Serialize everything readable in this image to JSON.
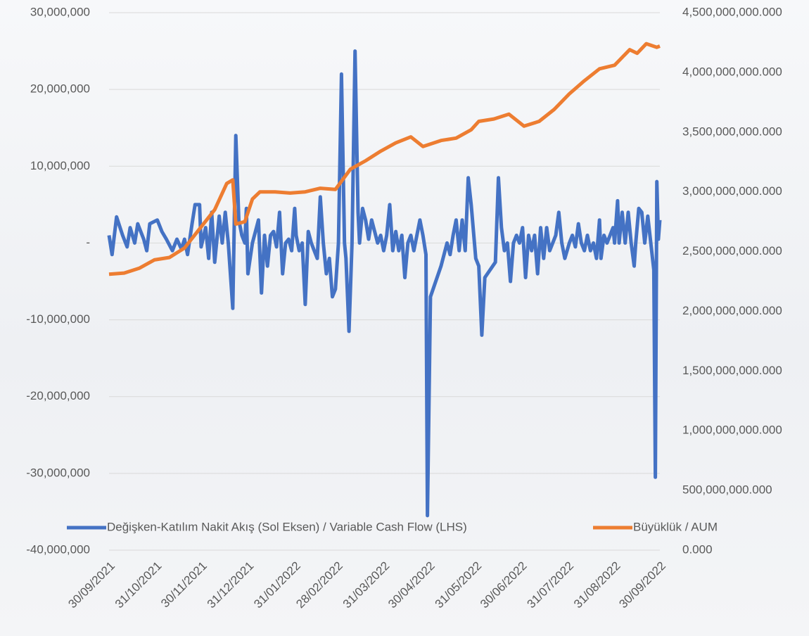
{
  "chart_data": {
    "type": "line",
    "xlim": [
      "2021-09-30",
      "2022-09-30"
    ],
    "xticks": [
      {
        "value": "2021-09-30",
        "label": "30/09/2021"
      },
      {
        "value": "2021-10-31",
        "label": "31/10/2021"
      },
      {
        "value": "2021-11-30",
        "label": "30/11/2021"
      },
      {
        "value": "2021-12-31",
        "label": "31/12/2021"
      },
      {
        "value": "2022-01-31",
        "label": "31/01/2022"
      },
      {
        "value": "2022-02-28",
        "label": "28/02/2022"
      },
      {
        "value": "2022-03-31",
        "label": "31/03/2022"
      },
      {
        "value": "2022-04-30",
        "label": "30/04/2022"
      },
      {
        "value": "2022-05-31",
        "label": "31/05/2022"
      },
      {
        "value": "2022-06-30",
        "label": "30/06/2022"
      },
      {
        "value": "2022-07-31",
        "label": "31/07/2022"
      },
      {
        "value": "2022-08-31",
        "label": "31/08/2022"
      },
      {
        "value": "2022-09-30",
        "label": "30/09/2022"
      }
    ],
    "ylim": [
      -40000000,
      30000000
    ],
    "yticks": [
      {
        "value": -40000000,
        "label": "-40,000,000"
      },
      {
        "value": -30000000,
        "label": "-30,000,000"
      },
      {
        "value": -20000000,
        "label": "-20,000,000"
      },
      {
        "value": -10000000,
        "label": "-10,000,000"
      },
      {
        "value": 0,
        "label": "-"
      },
      {
        "value": 10000000,
        "label": "10,000,000"
      },
      {
        "value": 20000000,
        "label": "20,000,000"
      },
      {
        "value": 30000000,
        "label": "30,000,000"
      }
    ],
    "y2lim": [
      0,
      4500000000000
    ],
    "y2ticks": [
      {
        "value": 0,
        "label": "0.000"
      },
      {
        "value": 500000000000,
        "label": "500,000,000.000"
      },
      {
        "value": 1000000000000,
        "label": "1,000,000,000.000"
      },
      {
        "value": 1500000000000,
        "label": "1,500,000,000.000"
      },
      {
        "value": 2000000000000,
        "label": "2,000,000,000.000"
      },
      {
        "value": 2500000000000,
        "label": "2,500,000,000.000"
      },
      {
        "value": 3000000000000,
        "label": "3,000,000,000.000"
      },
      {
        "value": 3500000000000,
        "label": "3,500,000,000.000"
      },
      {
        "value": 4000000000000,
        "label": "4,000,000,000.000"
      },
      {
        "value": 4500000000000,
        "label": "4,500,000,000.000"
      }
    ],
    "grid": true,
    "legend": "bottom",
    "series": [
      {
        "name": "Değişken-Katılım Nakit Akış (Sol Eksen) / Variable Cash Flow (LHS)",
        "color": "#4472c4",
        "x": [
          "2021-09-30",
          "2021-10-02",
          "2021-10-05",
          "2021-10-09",
          "2021-10-12",
          "2021-10-14",
          "2021-10-17",
          "2021-10-19",
          "2021-10-23",
          "2021-10-25",
          "2021-10-27",
          "2021-11-01",
          "2021-11-04",
          "2021-11-07",
          "2021-11-11",
          "2021-11-14",
          "2021-11-17",
          "2021-11-19",
          "2021-11-21",
          "2021-11-24",
          "2021-11-26",
          "2021-11-29",
          "2021-11-30",
          "2021-12-03",
          "2021-12-05",
          "2021-12-07",
          "2021-12-09",
          "2021-12-12",
          "2021-12-14",
          "2021-12-16",
          "2021-12-18",
          "2021-12-21",
          "2021-12-23",
          "2021-12-25",
          "2021-12-27",
          "2021-12-29",
          "2021-12-30",
          "2021-12-31",
          "2022-01-03",
          "2022-01-05",
          "2022-01-07",
          "2022-01-09",
          "2022-01-11",
          "2022-01-13",
          "2022-01-15",
          "2022-01-17",
          "2022-01-19",
          "2022-01-21",
          "2022-01-23",
          "2022-01-25",
          "2022-01-27",
          "2022-01-29",
          "2022-01-31",
          "2022-02-01",
          "2022-02-03",
          "2022-02-05",
          "2022-02-07",
          "2022-02-09",
          "2022-02-11",
          "2022-02-13",
          "2022-02-15",
          "2022-02-17",
          "2022-02-19",
          "2022-02-21",
          "2022-02-23",
          "2022-02-25",
          "2022-02-27",
          "2022-03-01",
          "2022-03-03",
          "2022-03-05",
          "2022-03-06",
          "2022-03-08",
          "2022-03-10",
          "2022-03-12",
          "2022-03-14",
          "2022-03-15",
          "2022-03-17",
          "2022-03-19",
          "2022-03-21",
          "2022-03-23",
          "2022-03-25",
          "2022-03-27",
          "2022-03-29",
          "2022-03-31",
          "2022-04-02",
          "2022-04-04",
          "2022-04-06",
          "2022-04-08",
          "2022-04-10",
          "2022-04-12",
          "2022-04-14",
          "2022-04-16",
          "2022-04-18",
          "2022-04-20",
          "2022-04-22",
          "2022-04-24",
          "2022-04-26",
          "2022-04-28",
          "2022-04-29",
          "2022-05-01",
          "2022-05-08",
          "2022-05-12",
          "2022-05-14",
          "2022-05-16",
          "2022-05-18",
          "2022-05-20",
          "2022-05-22",
          "2022-05-24",
          "2022-05-26",
          "2022-05-28",
          "2022-05-31",
          "2022-06-02",
          "2022-06-04",
          "2022-06-06",
          "2022-06-13",
          "2022-06-15",
          "2022-06-17",
          "2022-06-19",
          "2022-06-21",
          "2022-06-23",
          "2022-06-25",
          "2022-06-27",
          "2022-06-29",
          "2022-07-01",
          "2022-07-03",
          "2022-07-05",
          "2022-07-07",
          "2022-07-09",
          "2022-07-11",
          "2022-07-13",
          "2022-07-15",
          "2022-07-17",
          "2022-07-19",
          "2022-07-21",
          "2022-07-23",
          "2022-07-25",
          "2022-07-27",
          "2022-07-29",
          "2022-08-01",
          "2022-08-03",
          "2022-08-05",
          "2022-08-07",
          "2022-08-09",
          "2022-08-11",
          "2022-08-13",
          "2022-08-15",
          "2022-08-17",
          "2022-08-19",
          "2022-08-21",
          "2022-08-22",
          "2022-08-24",
          "2022-08-26",
          "2022-08-28",
          "2022-08-30",
          "2022-08-31",
          "2022-09-02",
          "2022-09-03",
          "2022-09-05",
          "2022-09-07",
          "2022-09-09",
          "2022-09-11",
          "2022-09-13",
          "2022-09-14",
          "2022-09-16",
          "2022-09-18",
          "2022-09-20",
          "2022-09-22",
          "2022-09-24",
          "2022-09-26",
          "2022-09-27",
          "2022-09-28",
          "2022-09-29",
          "2022-09-30"
        ],
        "values": [
          1000000,
          -1500000,
          3400000,
          1000000,
          -500000,
          2000000,
          0,
          2500000,
          500000,
          -1000000,
          2500000,
          3000000,
          1500000,
          500000,
          -1000000,
          500000,
          -800000,
          500000,
          -1500000,
          2500000,
          5000000,
          5000000,
          -500000,
          2000000,
          -2000000,
          4000000,
          -2500000,
          3500000,
          0,
          4000000,
          0,
          -8500000,
          14000000,
          3000000,
          1000000,
          0,
          4500000,
          -4000000,
          0,
          1500000,
          3000000,
          -6500000,
          1000000,
          -3000000,
          1000000,
          1500000,
          -500000,
          4000000,
          -4000000,
          0,
          500000,
          -1000000,
          4500000,
          1000000,
          -1000000,
          0,
          -8000000,
          1500000,
          0,
          -1000000,
          -2000000,
          6000000,
          0,
          -4000000,
          -2000000,
          -7000000,
          -6000000,
          0,
          22000000,
          0,
          -2000000,
          -11500000,
          0,
          25000000,
          4000000,
          0,
          4500000,
          3000000,
          500000,
          3000000,
          1500000,
          0,
          1000000,
          -1000000,
          1000000,
          5000000,
          -1000000,
          1500000,
          -1000000,
          1000000,
          -4500000,
          0,
          1000000,
          -1000000,
          1000000,
          3000000,
          1000000,
          -1500000,
          -35500000,
          -7000000,
          -3000000,
          0,
          -1500000,
          1000000,
          3000000,
          -1000000,
          3000000,
          -1000000,
          8500000,
          5000000,
          -2000000,
          -3000000,
          -12000000,
          -4500000,
          -2500000,
          8500000,
          2000000,
          -1000000,
          0,
          -5000000,
          0,
          1000000,
          0,
          2000000,
          -4500000,
          1000000,
          -1000000,
          1000000,
          -4000000,
          2000000,
          -2000000,
          2000000,
          -1000000,
          0,
          1000000,
          4000000,
          0,
          -2000000,
          0,
          1000000,
          -500000,
          2500000,
          0,
          -1000000,
          1000000,
          -1000000,
          0,
          -2000000,
          3000000,
          -2000000,
          1000000,
          0,
          1000000,
          2000000,
          0,
          5500000,
          0,
          4000000,
          0,
          4000000,
          0,
          -3000000,
          0,
          4500000,
          4000000,
          0,
          3500000,
          0,
          -3500000,
          -30500000,
          8000000,
          500000,
          3000000
        ]
      },
      {
        "name": "Büyüklük / AUM",
        "color": "#ed7d31",
        "axis": "y2",
        "x": [
          "2021-09-30",
          "2021-10-10",
          "2021-10-20",
          "2021-10-30",
          "2021-11-09",
          "2021-11-19",
          "2021-11-29",
          "2021-12-09",
          "2021-12-17",
          "2021-12-21",
          "2021-12-23",
          "2021-12-29",
          "2022-01-03",
          "2022-01-08",
          "2022-01-18",
          "2022-01-28",
          "2022-02-07",
          "2022-02-17",
          "2022-02-27",
          "2022-03-09",
          "2022-03-19",
          "2022-03-29",
          "2022-04-08",
          "2022-04-18",
          "2022-04-26",
          "2022-05-08",
          "2022-05-18",
          "2022-05-28",
          "2022-06-02",
          "2022-06-12",
          "2022-06-22",
          "2022-07-02",
          "2022-07-12",
          "2022-07-22",
          "2022-08-01",
          "2022-08-11",
          "2022-08-21",
          "2022-08-31",
          "2022-09-10",
          "2022-09-15",
          "2022-09-21",
          "2022-09-28",
          "2022-09-30"
        ],
        "values": [
          2310000000000,
          2320000000000,
          2360000000000,
          2430000000000,
          2450000000000,
          2530000000000,
          2690000000000,
          2850000000000,
          3070000000000,
          3100000000000,
          2730000000000,
          2750000000000,
          2940000000000,
          3000000000000,
          3000000000000,
          2990000000000,
          3000000000000,
          3030000000000,
          3020000000000,
          3190000000000,
          3260000000000,
          3340000000000,
          3410000000000,
          3460000000000,
          3380000000000,
          3430000000000,
          3450000000000,
          3520000000000,
          3590000000000,
          3610000000000,
          3650000000000,
          3550000000000,
          3590000000000,
          3690000000000,
          3820000000000,
          3930000000000,
          4030000000000,
          4060000000000,
          4190000000000,
          4160000000000,
          4240000000000,
          4210000000000,
          4220000000000
        ]
      }
    ]
  }
}
